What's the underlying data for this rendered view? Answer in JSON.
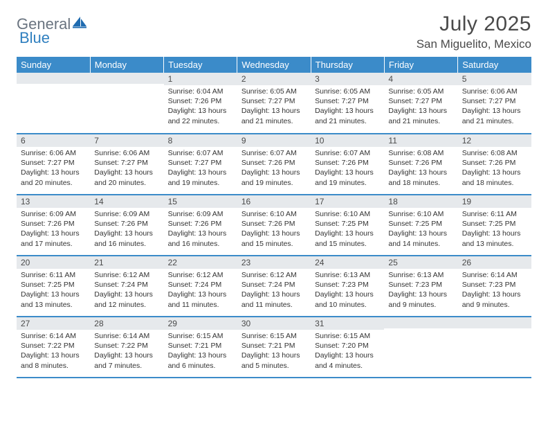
{
  "logo": {
    "text1": "General",
    "text2": "Blue"
  },
  "title": "July 2025",
  "location": "San Miguelito, Mexico",
  "header_bg": "#3b8bc9",
  "header_fg": "#ffffff",
  "daynum_bg": "#e6e9ec",
  "border_color": "#3b8bc9",
  "weekdays": [
    "Sunday",
    "Monday",
    "Tuesday",
    "Wednesday",
    "Thursday",
    "Friday",
    "Saturday"
  ],
  "weeks": [
    [
      {
        "n": "",
        "lines": [
          "",
          "",
          "",
          ""
        ]
      },
      {
        "n": "",
        "lines": [
          "",
          "",
          "",
          ""
        ]
      },
      {
        "n": "1",
        "lines": [
          "Sunrise: 6:04 AM",
          "Sunset: 7:26 PM",
          "Daylight: 13 hours",
          "and 22 minutes."
        ]
      },
      {
        "n": "2",
        "lines": [
          "Sunrise: 6:05 AM",
          "Sunset: 7:27 PM",
          "Daylight: 13 hours",
          "and 21 minutes."
        ]
      },
      {
        "n": "3",
        "lines": [
          "Sunrise: 6:05 AM",
          "Sunset: 7:27 PM",
          "Daylight: 13 hours",
          "and 21 minutes."
        ]
      },
      {
        "n": "4",
        "lines": [
          "Sunrise: 6:05 AM",
          "Sunset: 7:27 PM",
          "Daylight: 13 hours",
          "and 21 minutes."
        ]
      },
      {
        "n": "5",
        "lines": [
          "Sunrise: 6:06 AM",
          "Sunset: 7:27 PM",
          "Daylight: 13 hours",
          "and 21 minutes."
        ]
      }
    ],
    [
      {
        "n": "6",
        "lines": [
          "Sunrise: 6:06 AM",
          "Sunset: 7:27 PM",
          "Daylight: 13 hours",
          "and 20 minutes."
        ]
      },
      {
        "n": "7",
        "lines": [
          "Sunrise: 6:06 AM",
          "Sunset: 7:27 PM",
          "Daylight: 13 hours",
          "and 20 minutes."
        ]
      },
      {
        "n": "8",
        "lines": [
          "Sunrise: 6:07 AM",
          "Sunset: 7:27 PM",
          "Daylight: 13 hours",
          "and 19 minutes."
        ]
      },
      {
        "n": "9",
        "lines": [
          "Sunrise: 6:07 AM",
          "Sunset: 7:26 PM",
          "Daylight: 13 hours",
          "and 19 minutes."
        ]
      },
      {
        "n": "10",
        "lines": [
          "Sunrise: 6:07 AM",
          "Sunset: 7:26 PM",
          "Daylight: 13 hours",
          "and 19 minutes."
        ]
      },
      {
        "n": "11",
        "lines": [
          "Sunrise: 6:08 AM",
          "Sunset: 7:26 PM",
          "Daylight: 13 hours",
          "and 18 minutes."
        ]
      },
      {
        "n": "12",
        "lines": [
          "Sunrise: 6:08 AM",
          "Sunset: 7:26 PM",
          "Daylight: 13 hours",
          "and 18 minutes."
        ]
      }
    ],
    [
      {
        "n": "13",
        "lines": [
          "Sunrise: 6:09 AM",
          "Sunset: 7:26 PM",
          "Daylight: 13 hours",
          "and 17 minutes."
        ]
      },
      {
        "n": "14",
        "lines": [
          "Sunrise: 6:09 AM",
          "Sunset: 7:26 PM",
          "Daylight: 13 hours",
          "and 16 minutes."
        ]
      },
      {
        "n": "15",
        "lines": [
          "Sunrise: 6:09 AM",
          "Sunset: 7:26 PM",
          "Daylight: 13 hours",
          "and 16 minutes."
        ]
      },
      {
        "n": "16",
        "lines": [
          "Sunrise: 6:10 AM",
          "Sunset: 7:26 PM",
          "Daylight: 13 hours",
          "and 15 minutes."
        ]
      },
      {
        "n": "17",
        "lines": [
          "Sunrise: 6:10 AM",
          "Sunset: 7:25 PM",
          "Daylight: 13 hours",
          "and 15 minutes."
        ]
      },
      {
        "n": "18",
        "lines": [
          "Sunrise: 6:10 AM",
          "Sunset: 7:25 PM",
          "Daylight: 13 hours",
          "and 14 minutes."
        ]
      },
      {
        "n": "19",
        "lines": [
          "Sunrise: 6:11 AM",
          "Sunset: 7:25 PM",
          "Daylight: 13 hours",
          "and 13 minutes."
        ]
      }
    ],
    [
      {
        "n": "20",
        "lines": [
          "Sunrise: 6:11 AM",
          "Sunset: 7:25 PM",
          "Daylight: 13 hours",
          "and 13 minutes."
        ]
      },
      {
        "n": "21",
        "lines": [
          "Sunrise: 6:12 AM",
          "Sunset: 7:24 PM",
          "Daylight: 13 hours",
          "and 12 minutes."
        ]
      },
      {
        "n": "22",
        "lines": [
          "Sunrise: 6:12 AM",
          "Sunset: 7:24 PM",
          "Daylight: 13 hours",
          "and 11 minutes."
        ]
      },
      {
        "n": "23",
        "lines": [
          "Sunrise: 6:12 AM",
          "Sunset: 7:24 PM",
          "Daylight: 13 hours",
          "and 11 minutes."
        ]
      },
      {
        "n": "24",
        "lines": [
          "Sunrise: 6:13 AM",
          "Sunset: 7:23 PM",
          "Daylight: 13 hours",
          "and 10 minutes."
        ]
      },
      {
        "n": "25",
        "lines": [
          "Sunrise: 6:13 AM",
          "Sunset: 7:23 PM",
          "Daylight: 13 hours",
          "and 9 minutes."
        ]
      },
      {
        "n": "26",
        "lines": [
          "Sunrise: 6:14 AM",
          "Sunset: 7:23 PM",
          "Daylight: 13 hours",
          "and 9 minutes."
        ]
      }
    ],
    [
      {
        "n": "27",
        "lines": [
          "Sunrise: 6:14 AM",
          "Sunset: 7:22 PM",
          "Daylight: 13 hours",
          "and 8 minutes."
        ]
      },
      {
        "n": "28",
        "lines": [
          "Sunrise: 6:14 AM",
          "Sunset: 7:22 PM",
          "Daylight: 13 hours",
          "and 7 minutes."
        ]
      },
      {
        "n": "29",
        "lines": [
          "Sunrise: 6:15 AM",
          "Sunset: 7:21 PM",
          "Daylight: 13 hours",
          "and 6 minutes."
        ]
      },
      {
        "n": "30",
        "lines": [
          "Sunrise: 6:15 AM",
          "Sunset: 7:21 PM",
          "Daylight: 13 hours",
          "and 5 minutes."
        ]
      },
      {
        "n": "31",
        "lines": [
          "Sunrise: 6:15 AM",
          "Sunset: 7:20 PM",
          "Daylight: 13 hours",
          "and 4 minutes."
        ]
      },
      {
        "n": "",
        "lines": [
          "",
          "",
          "",
          ""
        ]
      },
      {
        "n": "",
        "lines": [
          "",
          "",
          "",
          ""
        ]
      }
    ]
  ]
}
